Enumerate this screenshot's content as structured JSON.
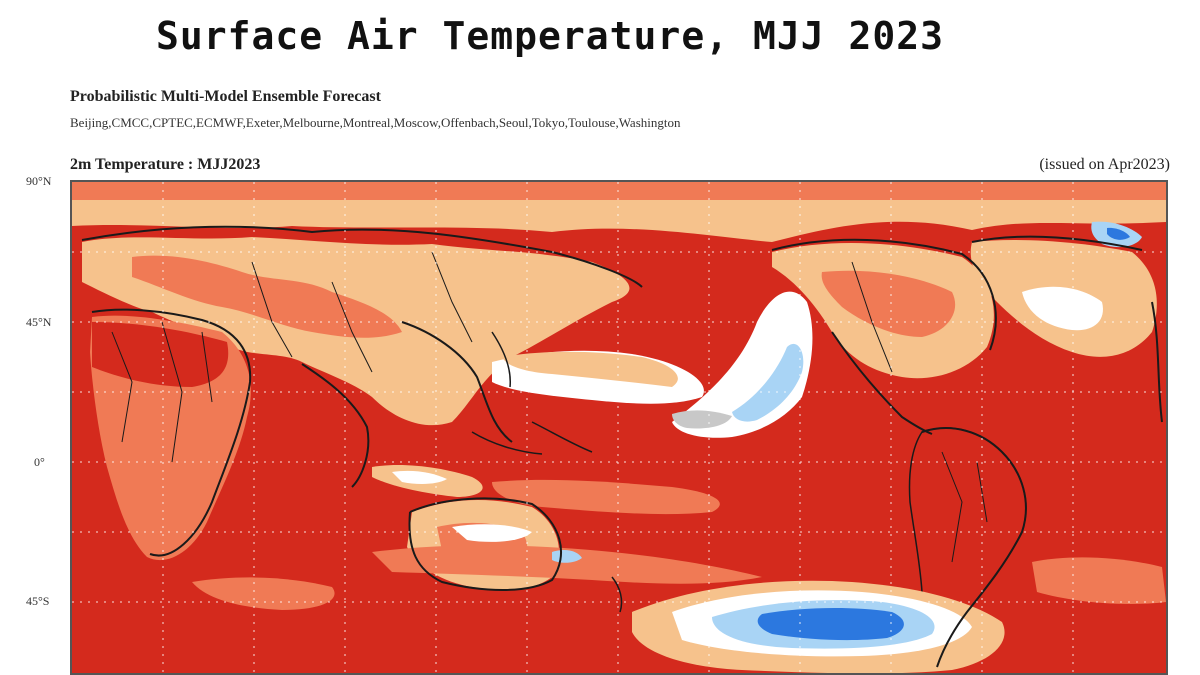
{
  "title": "Surface Air Temperature, MJJ 2023",
  "subtitle": "Probabilistic Multi-Model Ensemble Forecast",
  "centers": "Beijing,CMCC,CPTEC,ECMWF,Exeter,Melbourne,Montreal,Moscow,Offenbach,Seoul,Tokyo,Toulouse,Washington",
  "panel": {
    "variable": "2m Temperature : MJJ2023",
    "issued": "(issued on Apr2023)"
  },
  "lat_labels": [
    "90°N",
    "45°N",
    "0°",
    "45°S"
  ],
  "colors": {
    "strong_warm": "#d42a1d",
    "moderate_warm": "#f07a55",
    "weak_warm": "#f6c28c",
    "neutral": "#ffffff",
    "no_signal": "#c8c8c8",
    "weak_cold": "#a9d4f5",
    "strong_cold": "#2c78df",
    "coastline": "#1a1a1a",
    "grid": "#ffffff"
  }
}
